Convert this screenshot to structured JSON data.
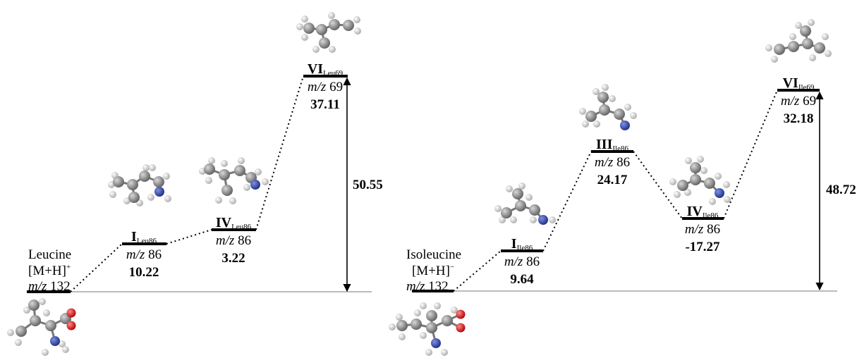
{
  "accent_colors": {
    "carbon": "#7f7f7f",
    "hydrogen": "#d9d9d9",
    "nitrogen": "#2b3fa0",
    "oxygen": "#d81b1b",
    "lines": "#000000"
  },
  "left_panel": {
    "start": {
      "line1": "Leucine",
      "line2_main": "[M+H]",
      "line2_sup": "+",
      "mz_prefix": "m/z",
      "mz_value": "132"
    },
    "states": [
      {
        "id": "I",
        "name": "I",
        "sub": "Leu86",
        "mz_prefix": "m/z",
        "mz_value": "86",
        "energy": "10.22"
      },
      {
        "id": "IV",
        "name": "IV",
        "sub": "Leu86",
        "mz_prefix": "m/z",
        "mz_value": "86",
        "energy": "3.22"
      },
      {
        "id": "VI",
        "name": "VI",
        "sub": "Leu69",
        "mz_prefix": "m/z",
        "mz_value": "69",
        "energy": "37.11"
      }
    ],
    "gap_value": "50.55"
  },
  "right_panel": {
    "start": {
      "line1": "Isoleucine",
      "line2_main": "[M+H]",
      "line2_sup": "−",
      "mz_prefix": "m/z",
      "mz_value": "132"
    },
    "states": [
      {
        "id": "I",
        "name": "I",
        "sub": "Ile86",
        "mz_prefix": "m/z",
        "mz_value": "86",
        "energy": "9.64"
      },
      {
        "id": "III",
        "name": "III",
        "sub": "Ile86",
        "mz_prefix": "m/z",
        "mz_value": "86",
        "energy": "24.17"
      },
      {
        "id": "IV",
        "name": "IV",
        "sub": "Ile86",
        "mz_prefix": "m/z",
        "mz_value": "86",
        "energy": "-17.27"
      },
      {
        "id": "VI",
        "name": "VI",
        "sub": "Ile69",
        "mz_prefix": "m/z",
        "mz_value": "69",
        "energy": "32.18"
      }
    ],
    "gap_value": "48.72"
  }
}
